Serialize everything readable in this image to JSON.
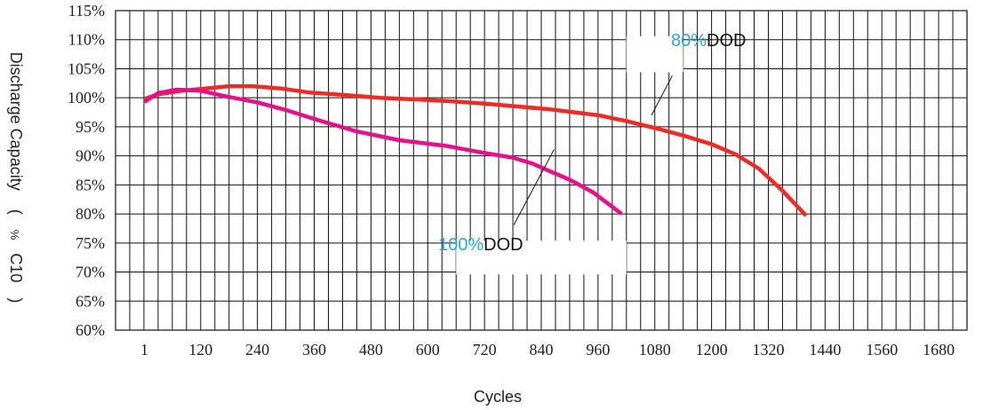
{
  "chart_data": {
    "type": "line",
    "title": "",
    "xlabel": "Cycles",
    "ylabel": {
      "main": "Discharge Capacity",
      "paren_open": "(",
      "percent": "%",
      "unit": "C10",
      "paren_close": ")"
    },
    "x_ticks": [
      "1",
      "120",
      "240",
      "360",
      "480",
      "600",
      "720",
      "840",
      "960",
      "1080",
      "1200",
      "1320",
      "1440",
      "1560",
      "1680"
    ],
    "y_ticks": [
      "115%",
      "110%",
      "105%",
      "100%",
      "95%",
      "90%",
      "85%",
      "80%",
      "75%",
      "70%",
      "65%",
      "60%"
    ],
    "xlim": [
      -60,
      1740
    ],
    "ylim": [
      60,
      115
    ],
    "grid": true,
    "series": [
      {
        "name": "80%DOD",
        "color": "#ee2b24",
        "x": [
          1,
          30,
          80,
          130,
          180,
          230,
          290,
          350,
          420,
          500,
          580,
          650,
          720,
          790,
          860,
          960,
          1020,
          1080,
          1140,
          1200,
          1250,
          1300,
          1350,
          1400
        ],
        "y": [
          99.8,
          100.6,
          101.2,
          101.6,
          102.0,
          102.0,
          101.6,
          100.9,
          100.5,
          100.0,
          99.7,
          99.4,
          99.0,
          98.5,
          98.0,
          97.0,
          96.0,
          94.8,
          93.5,
          92.0,
          90.3,
          87.8,
          84.0,
          79.7
        ]
      },
      {
        "name": "100%DOD",
        "color": "#e6108b",
        "x": [
          1,
          30,
          70,
          120,
          170,
          240,
          300,
          370,
          450,
          540,
          640,
          720,
          780,
          820,
          860,
          900,
          950,
          1010
        ],
        "y": [
          99.3,
          100.8,
          101.4,
          101.2,
          100.3,
          99.2,
          97.9,
          96.1,
          94.2,
          92.7,
          91.7,
          90.5,
          89.7,
          88.7,
          87.3,
          85.9,
          83.7,
          80.0
        ]
      }
    ],
    "annotations": [
      {
        "series": "80%DOD",
        "prefix": "80%",
        "suffix": "DOD",
        "prefix_color": "#2ba6de",
        "suffix_color": "#111111"
      },
      {
        "series": "100%DOD",
        "prefix": "100%",
        "suffix": "DOD",
        "prefix_color": "#2ba6de",
        "suffix_color": "#111111"
      }
    ]
  }
}
